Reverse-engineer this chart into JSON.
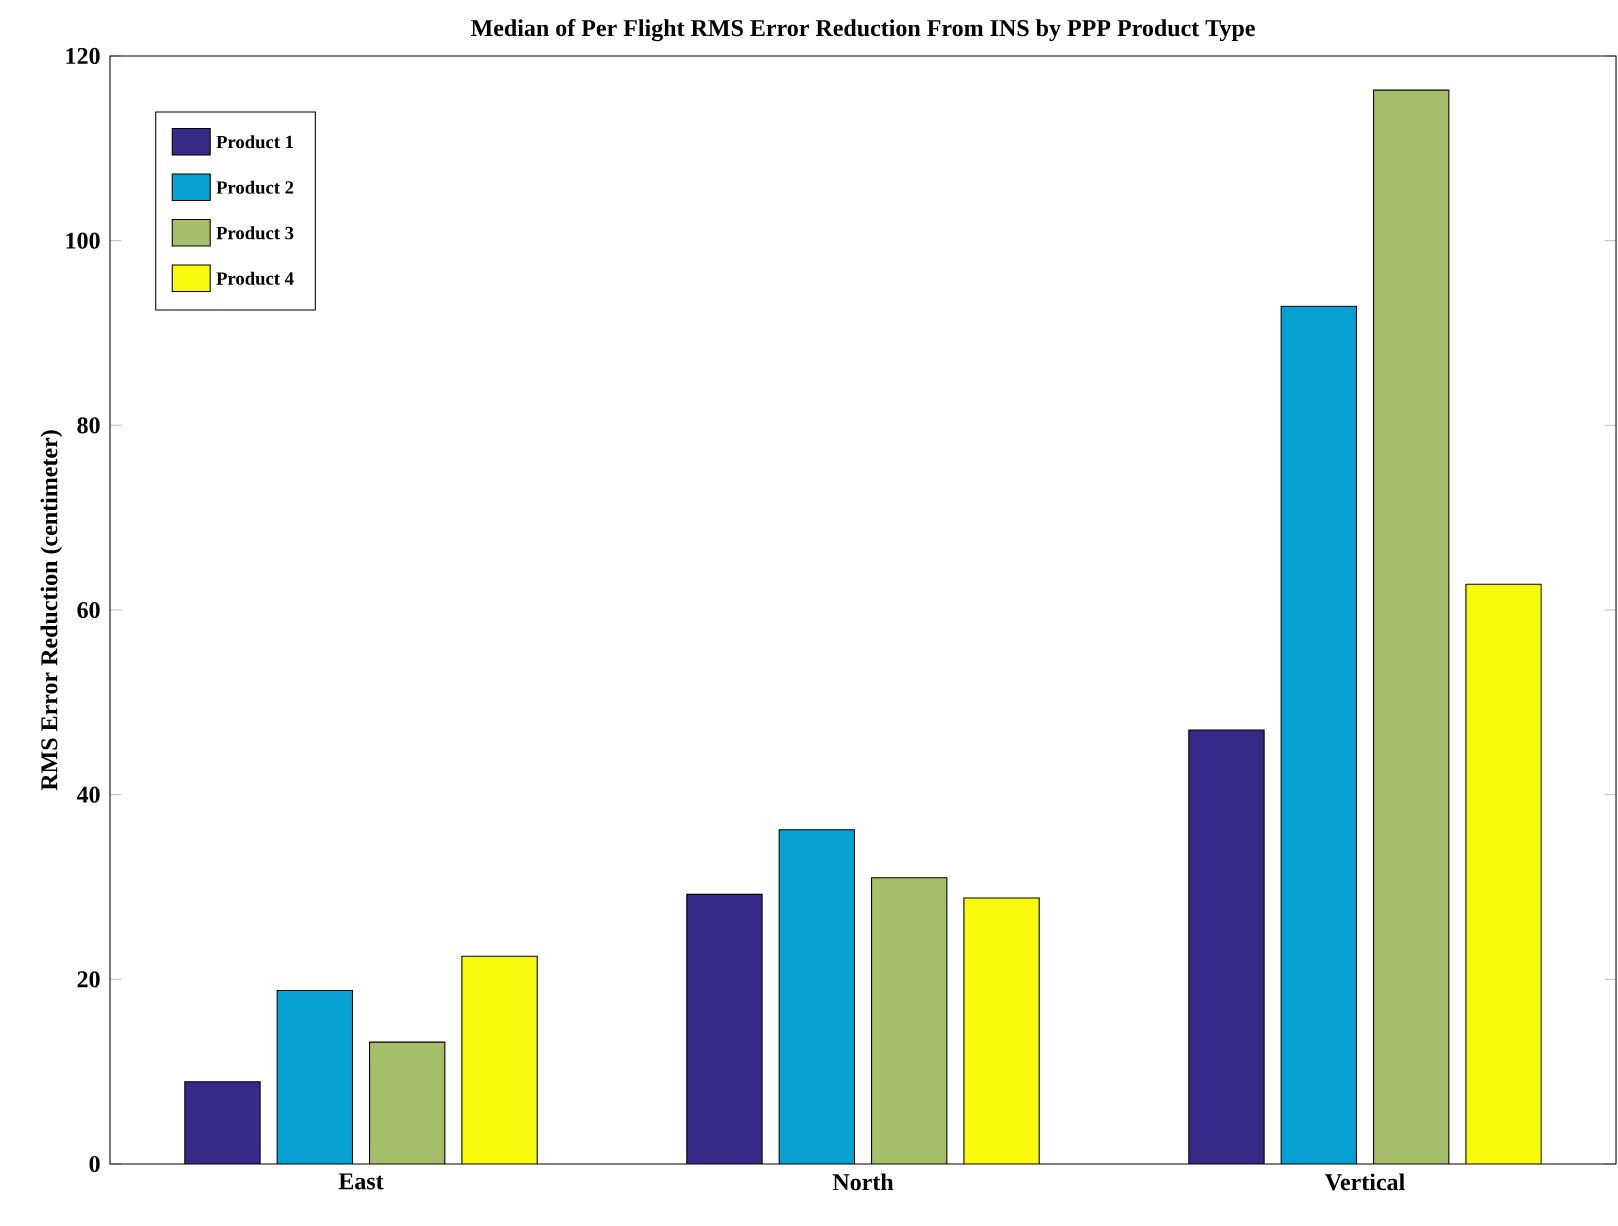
{
  "chart_data": {
    "type": "bar",
    "title": "Median of Per Flight RMS Error Reduction From INS by PPP Product Type",
    "ylabel": "RMS Error Reduction (centimeter)",
    "categories": [
      "East",
      "North",
      "Vertical"
    ],
    "series": [
      {
        "name": "Product 1",
        "color": "#352a87",
        "values": [
          8.9,
          29.2,
          47.0
        ]
      },
      {
        "name": "Product 2",
        "color": "#06a0d2",
        "values": [
          18.8,
          36.2,
          92.9
        ]
      },
      {
        "name": "Product 3",
        "color": "#a5be6a",
        "values": [
          13.2,
          31.0,
          116.3
        ]
      },
      {
        "name": "Product 4",
        "color": "#f8fa0d",
        "values": [
          22.5,
          28.8,
          62.8
        ]
      }
    ],
    "ylim": [
      0,
      120
    ],
    "yticks": [
      0,
      20,
      40,
      60,
      80,
      100,
      120
    ],
    "legend": "top left"
  }
}
